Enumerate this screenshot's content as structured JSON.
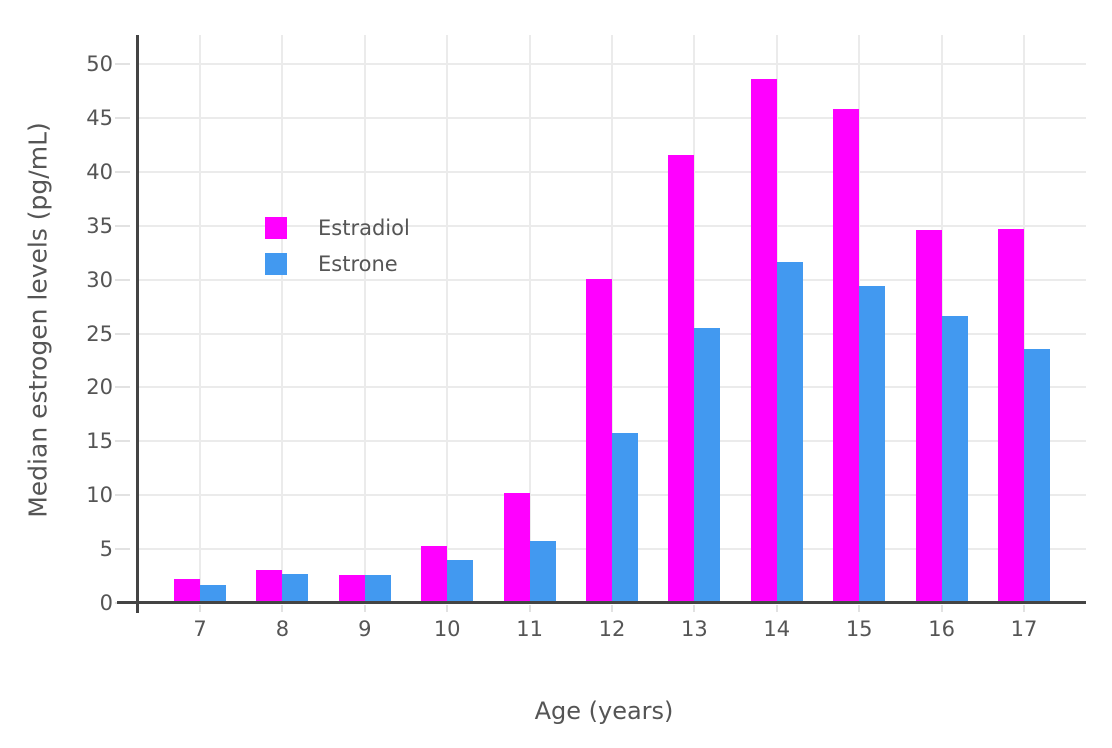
{
  "chart_data": {
    "type": "bar",
    "title": "",
    "xlabel": "Age (years)",
    "ylabel": "Median estrogen levels (pg/mL)",
    "categories": [
      7,
      8,
      9,
      10,
      11,
      12,
      13,
      14,
      15,
      16,
      17
    ],
    "series": [
      {
        "name": "Estradiol",
        "color": "#FF00FF",
        "values": [
          2.2,
          3.1,
          2.6,
          5.3,
          10.2,
          30.1,
          41.6,
          48.6,
          45.8,
          34.6,
          34.7
        ]
      },
      {
        "name": "Estrone",
        "color": "#4299F0",
        "values": [
          1.7,
          2.7,
          2.6,
          4.0,
          5.8,
          15.8,
          25.5,
          31.6,
          29.4,
          26.6,
          23.6
        ]
      }
    ],
    "ylim": [
      0,
      52.7
    ],
    "ytick_step": 5,
    "ytick_labels": [
      "0",
      "5",
      "10",
      "15",
      "20",
      "25",
      "30",
      "35",
      "40",
      "45",
      "50"
    ],
    "grid": true,
    "legend_position": "inside-top-left"
  },
  "style_colors": {
    "background": "#ffffff",
    "gridline": "#EBEBEB",
    "axis_line": "#444444",
    "minor_tick": "#E2E2E2",
    "text": "#555555"
  }
}
